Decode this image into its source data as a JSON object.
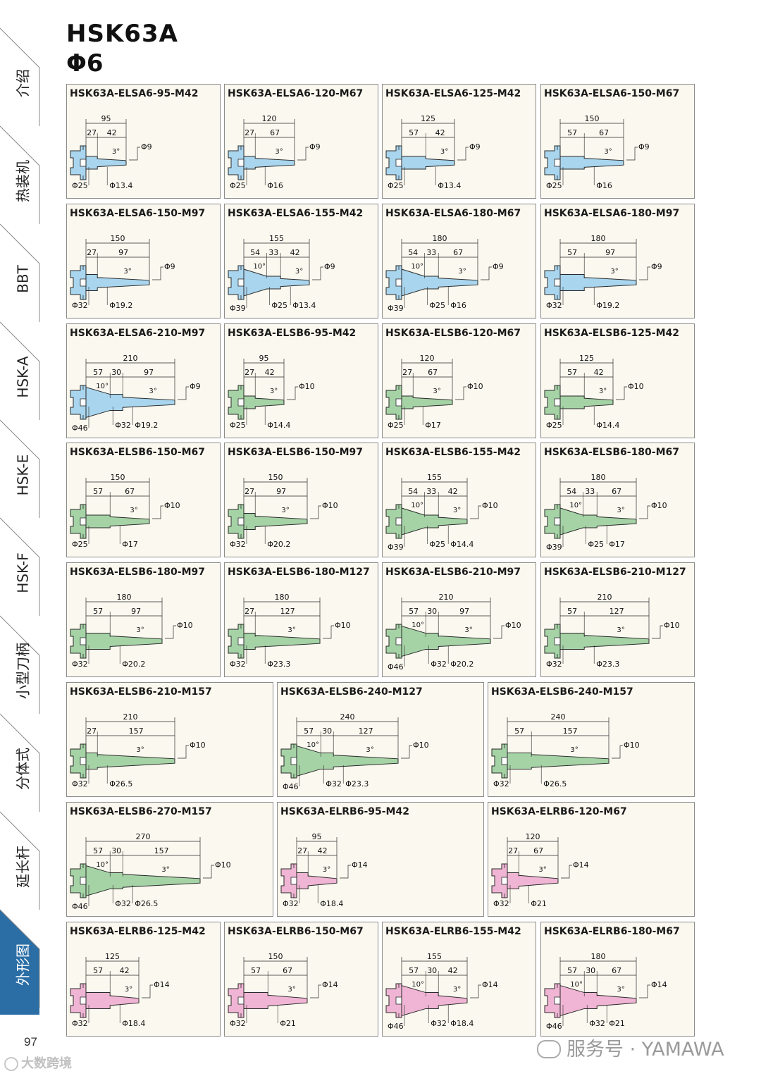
{
  "header": {
    "title": "HSK63A",
    "subtitle": "Φ6"
  },
  "side_tabs": [
    {
      "label": "介绍",
      "active": false
    },
    {
      "label": "热装机",
      "active": false
    },
    {
      "label": "BBT",
      "active": false
    },
    {
      "label": "HSK-A",
      "active": false
    },
    {
      "label": "HSK-E",
      "active": false
    },
    {
      "label": "HSK-F",
      "active": false
    },
    {
      "label": "小型刀柄",
      "active": false
    },
    {
      "label": "分体式",
      "active": false
    },
    {
      "label": "延长杆",
      "active": false
    },
    {
      "label": "外形图",
      "active": true
    }
  ],
  "page_number": "97",
  "footer": {
    "wechat": "服务号 · YAMAWA",
    "watermark": "大数跨境"
  },
  "colors": {
    "blue": "#a9d5ee",
    "green": "#a5d3a6",
    "pink": "#f0b5d4",
    "card_bg": "#fbf8ef",
    "tab_active": "#2b6ea6"
  },
  "products": [
    {
      "code": "HSK63A-ELSA6-95-M42",
      "color": "blue",
      "total": "95",
      "segments": [
        "27",
        "42"
      ],
      "taper": "3°",
      "tip": "Φ9",
      "diams": [
        "Φ25",
        "Φ13.4"
      ]
    },
    {
      "code": "HSK63A-ELSA6-120-M67",
      "color": "blue",
      "total": "120",
      "segments": [
        "27",
        "67"
      ],
      "taper": "3°",
      "tip": "Φ9",
      "diams": [
        "Φ25",
        "Φ16"
      ]
    },
    {
      "code": "HSK63A-ELSA6-125-M42",
      "color": "blue",
      "total": "125",
      "segments": [
        "57",
        "42"
      ],
      "taper": "3°",
      "tip": "Φ9",
      "diams": [
        "Φ25",
        "Φ13.4"
      ]
    },
    {
      "code": "HSK63A-ELSA6-150-M67",
      "color": "blue",
      "total": "150",
      "segments": [
        "57",
        "67"
      ],
      "taper": "3°",
      "tip": "Φ9",
      "diams": [
        "Φ25",
        "Φ16"
      ]
    },
    {
      "code": "HSK63A-ELSA6-150-M97",
      "color": "blue",
      "total": "150",
      "segments": [
        "27",
        "97"
      ],
      "taper": "3°",
      "tip": "Φ9",
      "diams": [
        "Φ32",
        "Φ19.2"
      ]
    },
    {
      "code": "HSK63A-ELSA6-155-M42",
      "color": "blue",
      "total": "155",
      "segments": [
        "54",
        "33",
        "42"
      ],
      "angle": "10°",
      "taper": "3°",
      "tip": "Φ9",
      "diams": [
        "Φ39",
        "Φ25",
        "Φ13.4"
      ]
    },
    {
      "code": "HSK63A-ELSA6-180-M67",
      "color": "blue",
      "total": "180",
      "segments": [
        "54",
        "33",
        "67"
      ],
      "angle": "10°",
      "taper": "3°",
      "tip": "Φ9",
      "diams": [
        "Φ39",
        "Φ25",
        "Φ16"
      ]
    },
    {
      "code": "HSK63A-ELSA6-180-M97",
      "color": "blue",
      "total": "180",
      "segments": [
        "57",
        "97"
      ],
      "taper": "3°",
      "tip": "Φ9",
      "diams": [
        "Φ32",
        "Φ19.2"
      ]
    },
    {
      "code": "HSK63A-ELSA6-210-M97",
      "color": "blue",
      "total": "210",
      "segments": [
        "57",
        "30",
        "97"
      ],
      "angle": "10°",
      "taper": "3°",
      "tip": "Φ9",
      "diams": [
        "Φ46",
        "Φ32",
        "Φ19.2"
      ]
    },
    {
      "code": "HSK63A-ELSB6-95-M42",
      "color": "green",
      "total": "95",
      "segments": [
        "27",
        "42"
      ],
      "taper": "3°",
      "tip": "Φ10",
      "diams": [
        "Φ25",
        "Φ14.4"
      ]
    },
    {
      "code": "HSK63A-ELSB6-120-M67",
      "color": "green",
      "total": "120",
      "segments": [
        "27",
        "67"
      ],
      "taper": "3°",
      "tip": "Φ10",
      "diams": [
        "Φ25",
        "Φ17"
      ]
    },
    {
      "code": "HSK63A-ELSB6-125-M42",
      "color": "green",
      "total": "125",
      "segments": [
        "57",
        "42"
      ],
      "taper": "3°",
      "tip": "Φ10",
      "diams": [
        "Φ25",
        "Φ14.4"
      ]
    },
    {
      "code": "HSK63A-ELSB6-150-M67",
      "color": "green",
      "total": "150",
      "segments": [
        "57",
        "67"
      ],
      "taper": "3°",
      "tip": "Φ10",
      "diams": [
        "Φ25",
        "Φ17"
      ]
    },
    {
      "code": "HSK63A-ELSB6-150-M97",
      "color": "green",
      "total": "150",
      "segments": [
        "27",
        "97"
      ],
      "taper": "3°",
      "tip": "Φ10",
      "diams": [
        "Φ32",
        "Φ20.2"
      ]
    },
    {
      "code": "HSK63A-ELSB6-155-M42",
      "color": "green",
      "total": "155",
      "segments": [
        "54",
        "33",
        "42"
      ],
      "angle": "10°",
      "taper": "3°",
      "tip": "Φ10",
      "diams": [
        "Φ39",
        "Φ25",
        "Φ14.4"
      ]
    },
    {
      "code": "HSK63A-ELSB6-180-M67",
      "color": "green",
      "total": "180",
      "segments": [
        "54",
        "33",
        "67"
      ],
      "angle": "10°",
      "taper": "3°",
      "tip": "Φ10",
      "diams": [
        "Φ39",
        "Φ25",
        "Φ17"
      ]
    },
    {
      "code": "HSK63A-ELSB6-180-M97",
      "color": "green",
      "total": "180",
      "segments": [
        "57",
        "97"
      ],
      "taper": "3°",
      "tip": "Φ10",
      "diams": [
        "Φ32",
        "Φ20.2"
      ]
    },
    {
      "code": "HSK63A-ELSB6-180-M127",
      "color": "green",
      "total": "180",
      "segments": [
        "27",
        "127"
      ],
      "taper": "3°",
      "tip": "Φ10",
      "diams": [
        "Φ32",
        "Φ23.3"
      ]
    },
    {
      "code": "HSK63A-ELSB6-210-M97",
      "color": "green",
      "total": "210",
      "segments": [
        "57",
        "30",
        "97"
      ],
      "angle": "10°",
      "taper": "3°",
      "tip": "Φ10",
      "diams": [
        "Φ46",
        "Φ32",
        "Φ20.2"
      ]
    },
    {
      "code": "HSK63A-ELSB6-210-M127",
      "color": "green",
      "total": "210",
      "segments": [
        "57",
        "127"
      ],
      "taper": "3°",
      "tip": "Φ10",
      "diams": [
        "Φ32",
        "Φ23.3"
      ]
    },
    {
      "code": "HSK63A-ELSB6-210-M157",
      "color": "green",
      "total": "210",
      "segments": [
        "27",
        "157"
      ],
      "taper": "3°",
      "tip": "Φ10",
      "diams": [
        "Φ32",
        "Φ26.5"
      ]
    },
    {
      "code": "HSK63A-ELSB6-240-M127",
      "color": "green",
      "total": "240",
      "segments": [
        "57",
        "30",
        "127"
      ],
      "angle": "10°",
      "taper": "3°",
      "tip": "Φ10",
      "diams": [
        "Φ46",
        "Φ32",
        "Φ23.3"
      ]
    },
    {
      "code": "HSK63A-ELSB6-240-M157",
      "color": "green",
      "total": "240",
      "segments": [
        "57",
        "157"
      ],
      "taper": "3°",
      "tip": "Φ10",
      "diams": [
        "Φ32",
        "Φ26.5"
      ]
    },
    {
      "code": "HSK63A-ELSB6-270-M157",
      "color": "green",
      "total": "270",
      "segments": [
        "57",
        "30",
        "157"
      ],
      "angle": "10°",
      "taper": "3°",
      "tip": "Φ10",
      "diams": [
        "Φ46",
        "Φ32",
        "Φ26.5"
      ]
    },
    {
      "code": "HSK63A-ELRB6-95-M42",
      "color": "pink",
      "total": "95",
      "segments": [
        "27",
        "42"
      ],
      "taper": "3°",
      "tip": "Φ14",
      "diams": [
        "Φ32",
        "Φ18.4"
      ]
    },
    {
      "code": "HSK63A-ELRB6-120-M67",
      "color": "pink",
      "total": "120",
      "segments": [
        "27",
        "67"
      ],
      "taper": "3°",
      "tip": "Φ14",
      "diams": [
        "Φ32",
        "Φ21"
      ]
    },
    {
      "code": "HSK63A-ELRB6-125-M42",
      "color": "pink",
      "total": "125",
      "segments": [
        "57",
        "42"
      ],
      "taper": "3°",
      "tip": "Φ14",
      "diams": [
        "Φ32",
        "Φ18.4"
      ]
    },
    {
      "code": "HSK63A-ELRB6-150-M67",
      "color": "pink",
      "total": "150",
      "segments": [
        "57",
        "67"
      ],
      "taper": "3°",
      "tip": "Φ14",
      "diams": [
        "Φ32",
        "Φ21"
      ]
    },
    {
      "code": "HSK63A-ELRB6-155-M42",
      "color": "pink",
      "total": "155",
      "segments": [
        "57",
        "30",
        "42"
      ],
      "angle": "10°",
      "taper": "3°",
      "tip": "Φ14",
      "diams": [
        "Φ46",
        "Φ32",
        "Φ18.4"
      ]
    },
    {
      "code": "HSK63A-ELRB6-180-M67",
      "color": "pink",
      "total": "180",
      "segments": [
        "57",
        "30",
        "67"
      ],
      "angle": "10°",
      "taper": "3°",
      "tip": "Φ14",
      "diams": [
        "Φ46",
        "Φ32",
        "Φ21"
      ]
    }
  ]
}
